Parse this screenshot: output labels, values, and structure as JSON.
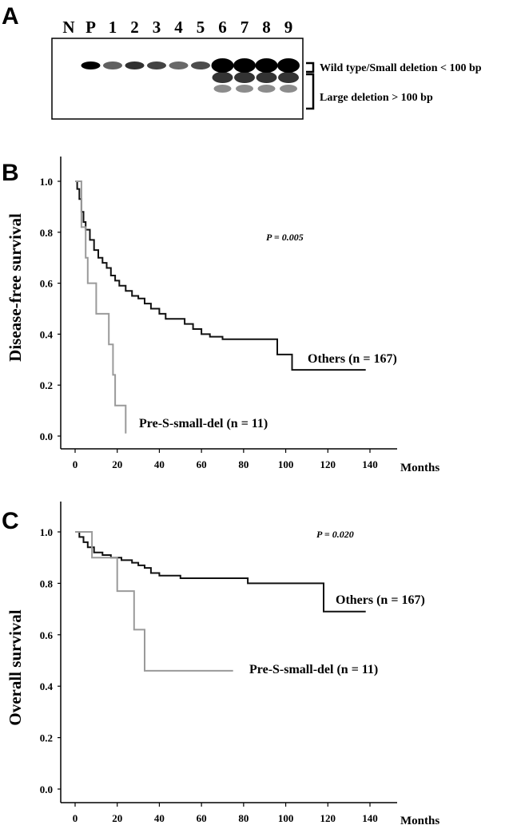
{
  "panels": {
    "a": "A",
    "b": "B",
    "c": "C"
  },
  "gel": {
    "lanes": [
      "N",
      "P",
      "1",
      "2",
      "3",
      "4",
      "5",
      "6",
      "7",
      "8",
      "9"
    ],
    "band_labels": {
      "upper": "Wild type/Small deletion < 100 bp",
      "lower": "Large deletion > 100 bp"
    },
    "lane_band_intensity": [
      0,
      1.0,
      0.5,
      0.75,
      0.65,
      0.45,
      0.6,
      1.0,
      1.0,
      1.0,
      1.0
    ],
    "lane_has_large_deletion": [
      false,
      false,
      false,
      false,
      false,
      false,
      false,
      true,
      true,
      true,
      true
    ]
  },
  "chart_data": [
    {
      "type": "line",
      "panel": "B",
      "ylabel": "Disease-free survival",
      "xlabel": "Months",
      "xlim": [
        0,
        140
      ],
      "ylim": [
        0.0,
        1.0
      ],
      "xticks": [
        0,
        20,
        40,
        60,
        80,
        100,
        120,
        140
      ],
      "yticks": [
        "0.0",
        "0.2",
        "0.4",
        "0.6",
        "0.8",
        "1.0"
      ],
      "annotation": "P = 0.005",
      "series": [
        {
          "name": "Others (n = 167)",
          "color": "#111111",
          "points": [
            [
              0,
              1.0
            ],
            [
              1,
              0.97
            ],
            [
              2,
              0.93
            ],
            [
              3,
              0.88
            ],
            [
              4,
              0.84
            ],
            [
              5,
              0.81
            ],
            [
              7,
              0.77
            ],
            [
              9,
              0.73
            ],
            [
              11,
              0.7
            ],
            [
              13,
              0.68
            ],
            [
              15,
              0.66
            ],
            [
              17,
              0.63
            ],
            [
              19,
              0.61
            ],
            [
              21,
              0.59
            ],
            [
              24,
              0.57
            ],
            [
              27,
              0.55
            ],
            [
              30,
              0.54
            ],
            [
              33,
              0.52
            ],
            [
              36,
              0.5
            ],
            [
              40,
              0.48
            ],
            [
              43,
              0.46
            ],
            [
              48,
              0.46
            ],
            [
              52,
              0.44
            ],
            [
              56,
              0.42
            ],
            [
              60,
              0.4
            ],
            [
              64,
              0.39
            ],
            [
              70,
              0.38
            ],
            [
              96,
              0.38
            ],
            [
              96,
              0.32
            ],
            [
              103,
              0.32
            ],
            [
              103,
              0.26
            ],
            [
              138,
              0.26
            ]
          ]
        },
        {
          "name": "Pre-S-small-del (n = 11)",
          "color": "#9a9a9a",
          "points": [
            [
              0,
              1.0
            ],
            [
              3,
              1.0
            ],
            [
              3,
              0.82
            ],
            [
              5,
              0.82
            ],
            [
              5,
              0.7
            ],
            [
              6,
              0.7
            ],
            [
              6,
              0.6
            ],
            [
              10,
              0.6
            ],
            [
              10,
              0.48
            ],
            [
              16,
              0.48
            ],
            [
              16,
              0.36
            ],
            [
              18,
              0.36
            ],
            [
              18,
              0.24
            ],
            [
              19,
              0.24
            ],
            [
              19,
              0.12
            ],
            [
              24,
              0.12
            ],
            [
              24,
              0.01
            ]
          ]
        }
      ]
    },
    {
      "type": "line",
      "panel": "C",
      "ylabel": "Overall survival",
      "xlabel": "Months",
      "xlim": [
        0,
        140
      ],
      "ylim": [
        0.0,
        1.0
      ],
      "xticks": [
        0,
        20,
        40,
        60,
        80,
        100,
        120,
        140
      ],
      "yticks": [
        "0.0",
        "0.2",
        "0.4",
        "0.6",
        "0.8",
        "1.0"
      ],
      "annotation": "P = 0.020",
      "series": [
        {
          "name": "Others (n = 167)",
          "color": "#111111",
          "points": [
            [
              0,
              1.0
            ],
            [
              2,
              0.98
            ],
            [
              4,
              0.96
            ],
            [
              6,
              0.94
            ],
            [
              9,
              0.92
            ],
            [
              13,
              0.91
            ],
            [
              17,
              0.9
            ],
            [
              22,
              0.89
            ],
            [
              27,
              0.88
            ],
            [
              30,
              0.87
            ],
            [
              33,
              0.86
            ],
            [
              36,
              0.84
            ],
            [
              40,
              0.83
            ],
            [
              45,
              0.83
            ],
            [
              50,
              0.82
            ],
            [
              82,
              0.82
            ],
            [
              82,
              0.8
            ],
            [
              118,
              0.8
            ],
            [
              118,
              0.69
            ],
            [
              138,
              0.69
            ]
          ]
        },
        {
          "name": "Pre-S-small-del (n = 11)",
          "color": "#9a9a9a",
          "points": [
            [
              0,
              1.0
            ],
            [
              8,
              1.0
            ],
            [
              8,
              0.9
            ],
            [
              20,
              0.9
            ],
            [
              20,
              0.77
            ],
            [
              28,
              0.77
            ],
            [
              28,
              0.62
            ],
            [
              33,
              0.62
            ],
            [
              33,
              0.46
            ],
            [
              75,
              0.46
            ]
          ]
        }
      ]
    }
  ]
}
